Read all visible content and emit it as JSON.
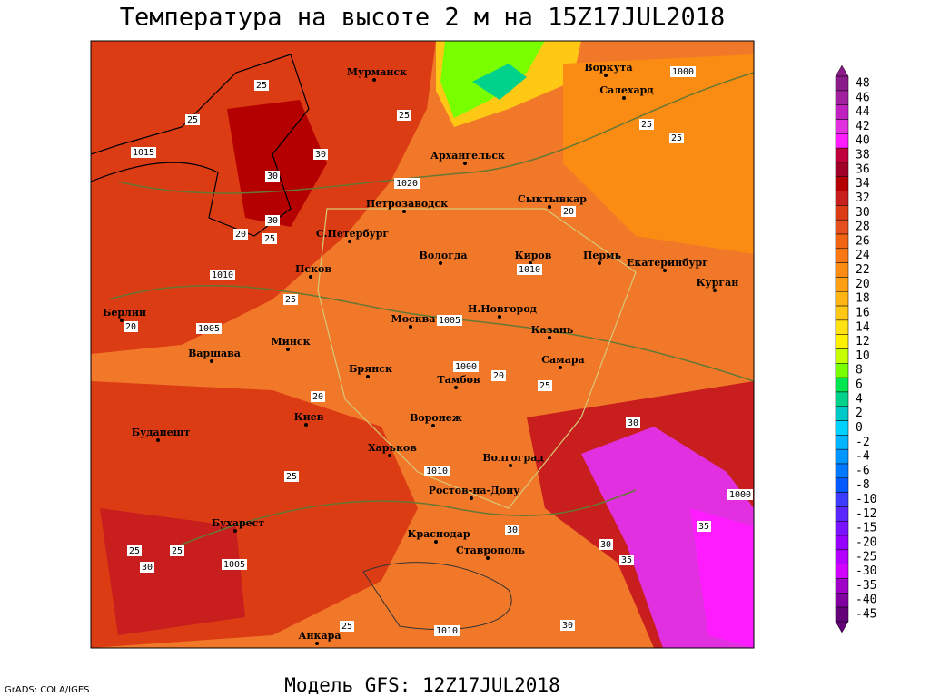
{
  "header": {
    "title": "Температура на высоте 2 м на 15Z17JUL2018"
  },
  "footer": {
    "model": "Модель GFS: 12Z17JUL2018",
    "credit": "GrADS: COLA/IGES"
  },
  "colorbar": {
    "ticks": [
      48,
      46,
      44,
      42,
      40,
      38,
      36,
      34,
      32,
      30,
      28,
      26,
      24,
      22,
      20,
      18,
      16,
      14,
      12,
      10,
      8,
      6,
      4,
      2,
      0,
      -2,
      -4,
      -6,
      -8,
      -10,
      -12,
      -15,
      -20,
      -25,
      -30,
      -35,
      -40,
      -45
    ],
    "colors": [
      "#8b1a8b",
      "#a0209f",
      "#c020c0",
      "#e030e0",
      "#ff1cff",
      "#c0003c",
      "#a00028",
      "#b40000",
      "#c81e1e",
      "#dc3c14",
      "#e6501e",
      "#f06414",
      "#fa7814",
      "#fa8c14",
      "#ffa014",
      "#ffb414",
      "#ffc814",
      "#ffe114",
      "#fff000",
      "#c8ff00",
      "#78ff00",
      "#00e650",
      "#00d28c",
      "#00c8c8",
      "#00d2ff",
      "#00b4ff",
      "#0096ff",
      "#0078ff",
      "#005aff",
      "#3c3cff",
      "#5a28ff",
      "#7814ff",
      "#9600ff",
      "#b400ff",
      "#d200ff",
      "#a000c8",
      "#8200a0",
      "#640078"
    ]
  },
  "cities": [
    "Мурманск",
    "Воркута",
    "Салехард",
    "Архангельск",
    "Петрозаводск",
    "Сыктывкар",
    "С.Петербург",
    "Вологда",
    "Киров",
    "Пермь",
    "Екатеринбург",
    "Курган",
    "Псков",
    "Берлин",
    "Москва",
    "Н.Новгород",
    "Казань",
    "Минск",
    "Варшава",
    "Брянск",
    "Тамбов",
    "Самара",
    "Воронеж",
    "Киев",
    "Будапешт",
    "Харьков",
    "Волгоград",
    "Ростов-на-Дону",
    "Бухарест",
    "Краснодар",
    "Ставрополь",
    "Анкара"
  ],
  "isobar_labels": [
    1015,
    1020,
    1010,
    1010,
    1005,
    1005,
    1000,
    1010,
    1000,
    1005,
    1010,
    1000
  ],
  "temperature_labels": [
    25,
    25,
    30,
    30,
    25,
    30,
    20,
    25,
    20,
    25,
    25,
    20,
    25,
    20,
    25,
    30,
    20,
    25,
    30,
    35,
    35,
    30,
    25,
    25,
    30,
    25,
    30
  ]
}
